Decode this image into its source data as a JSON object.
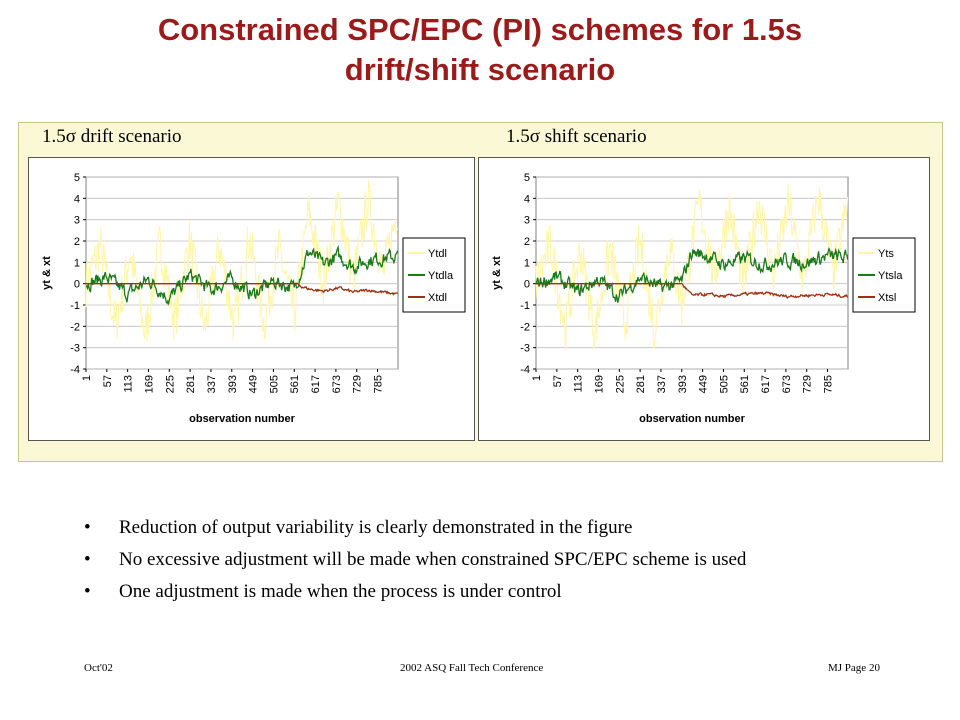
{
  "slide": {
    "title_line1": "Constrained SPC/EPC (PI) schemes for 1.5s",
    "title_line2": "drift/shift scenario",
    "bullets": [
      "Reduction of output variability is clearly demonstrated in the figure",
      "No excessive adjustment will be made when constrained SPC/EPC scheme is used",
      "One adjustment is made when the process is under control"
    ],
    "bullet_marker": "•",
    "footer": {
      "left": "Oct'02",
      "center": "2002 ASQ Fall Tech Conference",
      "right": "MJ   Page 20"
    },
    "colors": {
      "title": "#9b1b1b",
      "panel_bg": "#fbf8d6",
      "plot_bg": "#ffffff"
    }
  },
  "chart_data": [
    {
      "type": "line",
      "caption": "1.5σ drift scenario",
      "xlabel": "observation number",
      "ylabel": "yt & xt",
      "xlim": [
        1,
        840
      ],
      "ylim": [
        -4,
        5
      ],
      "yticks": [
        5,
        4,
        3,
        2,
        1,
        0,
        -1,
        -2,
        -3,
        -4
      ],
      "xticks": [
        1,
        57,
        113,
        169,
        225,
        281,
        337,
        393,
        449,
        505,
        561,
        617,
        673,
        729,
        785
      ],
      "grid": true,
      "legend_position": "right",
      "change_point": 561,
      "series": [
        {
          "name": "Ytdl",
          "color": "#fff6a8",
          "values": [
            [
              1,
              0.0
            ],
            [
              40,
              1.8
            ],
            [
              80,
              -2.0
            ],
            [
              120,
              1.5
            ],
            [
              160,
              -2.4
            ],
            [
              200,
              1.9
            ],
            [
              240,
              -1.8
            ],
            [
              280,
              2.1
            ],
            [
              320,
              -2.2
            ],
            [
              360,
              1.8
            ],
            [
              400,
              -2.0
            ],
            [
              440,
              2.2
            ],
            [
              480,
              -1.9
            ],
            [
              520,
              1.6
            ],
            [
              561,
              -1.5
            ],
            [
              600,
              3.4
            ],
            [
              640,
              0.0
            ],
            [
              680,
              3.8
            ],
            [
              720,
              0.2
            ],
            [
              760,
              4.0
            ],
            [
              800,
              0.4
            ],
            [
              840,
              3.6
            ]
          ]
        },
        {
          "name": "Ytdla",
          "color": "#1a7a1a",
          "values": [
            [
              1,
              0.0
            ],
            [
              56,
              0.3
            ],
            [
              113,
              -0.5
            ],
            [
              169,
              0.2
            ],
            [
              225,
              -0.7
            ],
            [
              281,
              0.4
            ],
            [
              337,
              -0.3
            ],
            [
              393,
              0.2
            ],
            [
              449,
              -0.5
            ],
            [
              505,
              0.1
            ],
            [
              561,
              -0.2
            ],
            [
              600,
              1.5
            ],
            [
              640,
              0.9
            ],
            [
              680,
              1.3
            ],
            [
              720,
              0.8
            ],
            [
              760,
              1.1
            ],
            [
              800,
              1.2
            ],
            [
              840,
              1.3
            ]
          ]
        },
        {
          "name": "Xtdl",
          "color": "#a0300f",
          "values": [
            [
              1,
              0.0
            ],
            [
              561,
              0.0
            ],
            [
              600,
              -0.25
            ],
            [
              640,
              -0.35
            ],
            [
              680,
              -0.2
            ],
            [
              720,
              -0.4
            ],
            [
              760,
              -0.3
            ],
            [
              800,
              -0.4
            ],
            [
              840,
              -0.5
            ]
          ]
        }
      ]
    },
    {
      "type": "line",
      "caption": "1.5σ shift scenario",
      "xlabel": "observation number",
      "ylabel": "yt & xt",
      "xlim": [
        1,
        840
      ],
      "ylim": [
        -4,
        5
      ],
      "yticks": [
        5,
        4,
        3,
        2,
        1,
        0,
        -1,
        -2,
        -3,
        -4
      ],
      "xticks": [
        1,
        57,
        113,
        169,
        225,
        281,
        337,
        393,
        449,
        505,
        561,
        617,
        673,
        729,
        785
      ],
      "grid": true,
      "legend_position": "right",
      "change_point": 393,
      "series": [
        {
          "name": "Yts",
          "color": "#fff6a8",
          "values": [
            [
              1,
              0.0
            ],
            [
              40,
              1.9
            ],
            [
              80,
              -2.1
            ],
            [
              120,
              1.6
            ],
            [
              160,
              -2.3
            ],
            [
              200,
              1.7
            ],
            [
              240,
              -1.9
            ],
            [
              280,
              2.0
            ],
            [
              320,
              -2.1
            ],
            [
              360,
              1.8
            ],
            [
              393,
              -1.0
            ],
            [
              440,
              3.8
            ],
            [
              480,
              0.3
            ],
            [
              520,
              3.6
            ],
            [
              560,
              -0.1
            ],
            [
              600,
              3.9
            ],
            [
              640,
              0.4
            ],
            [
              680,
              3.7
            ],
            [
              720,
              0.2
            ],
            [
              760,
              4.1
            ],
            [
              800,
              0.5
            ],
            [
              840,
              3.8
            ]
          ]
        },
        {
          "name": "Ytsla",
          "color": "#1a7a1a",
          "values": [
            [
              1,
              0.0
            ],
            [
              56,
              0.3
            ],
            [
              113,
              -0.4
            ],
            [
              169,
              0.2
            ],
            [
              225,
              -0.6
            ],
            [
              281,
              0.3
            ],
            [
              337,
              -0.2
            ],
            [
              393,
              0.1
            ],
            [
              420,
              1.5
            ],
            [
              460,
              1.3
            ],
            [
              505,
              0.9
            ],
            [
              561,
              1.2
            ],
            [
              617,
              0.9
            ],
            [
              673,
              1.1
            ],
            [
              729,
              1.0
            ],
            [
              785,
              1.3
            ],
            [
              840,
              1.2
            ]
          ]
        },
        {
          "name": "Xtsl",
          "color": "#a0300f",
          "values": [
            [
              1,
              0.0
            ],
            [
              393,
              0.0
            ],
            [
              420,
              -0.55
            ],
            [
              460,
              -0.5
            ],
            [
              505,
              -0.6
            ],
            [
              561,
              -0.5
            ],
            [
              617,
              -0.45
            ],
            [
              673,
              -0.6
            ],
            [
              729,
              -0.55
            ],
            [
              785,
              -0.5
            ],
            [
              840,
              -0.6
            ]
          ]
        }
      ]
    }
  ]
}
